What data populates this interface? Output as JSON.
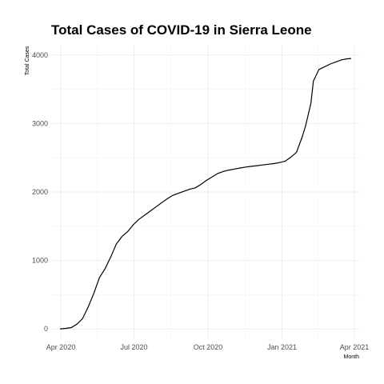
{
  "chart_data": {
    "type": "line",
    "title": "Total Cases of COVID-19 in Sierra Leone",
    "xlabel": "Month",
    "ylabel": "Total Cases",
    "x_ticks": [
      {
        "date": "2020-04-01",
        "label": "Apr 2020"
      },
      {
        "date": "2020-07-01",
        "label": "Jul 2020"
      },
      {
        "date": "2020-10-01",
        "label": "Oct 2020"
      },
      {
        "date": "2021-01-01",
        "label": "Jan 2021"
      },
      {
        "date": "2021-04-01",
        "label": "Apr 2021"
      }
    ],
    "y_ticks": [
      0,
      1000,
      2000,
      3000,
      4000
    ],
    "xlim": [
      "2020-03-20",
      "2021-04-08"
    ],
    "ylim": [
      -150,
      4150
    ],
    "grid": true,
    "line_color": "#000000",
    "series": [
      {
        "x": [
          "2020-03-31",
          "2020-04-07",
          "2020-04-14",
          "2020-04-21",
          "2020-04-28",
          "2020-05-05",
          "2020-05-12",
          "2020-05-19",
          "2020-05-26",
          "2020-06-02",
          "2020-06-09",
          "2020-06-16",
          "2020-06-23",
          "2020-06-30",
          "2020-07-07",
          "2020-07-14",
          "2020-07-21",
          "2020-07-28",
          "2020-08-04",
          "2020-08-11",
          "2020-08-18",
          "2020-08-25",
          "2020-09-01",
          "2020-09-08",
          "2020-09-15",
          "2020-09-22",
          "2020-09-29",
          "2020-10-06",
          "2020-10-13",
          "2020-10-20",
          "2020-10-27",
          "2020-11-03",
          "2020-11-10",
          "2020-11-17",
          "2020-11-24",
          "2020-12-01",
          "2020-12-08",
          "2020-12-15",
          "2020-12-22",
          "2020-12-29",
          "2021-01-05",
          "2021-01-12",
          "2021-01-19",
          "2021-01-26",
          "2021-01-30",
          "2021-02-02",
          "2021-02-06",
          "2021-02-09",
          "2021-02-16",
          "2021-02-23",
          "2021-03-02",
          "2021-03-09",
          "2021-03-16",
          "2021-03-23",
          "2021-03-28"
        ],
        "y": [
          1,
          8,
          20,
          70,
          150,
          320,
          520,
          750,
          880,
          1050,
          1240,
          1350,
          1420,
          1520,
          1600,
          1660,
          1720,
          1780,
          1840,
          1900,
          1950,
          1980,
          2010,
          2040,
          2060,
          2110,
          2170,
          2220,
          2270,
          2300,
          2320,
          2335,
          2350,
          2365,
          2375,
          2385,
          2395,
          2405,
          2415,
          2430,
          2450,
          2510,
          2580,
          2800,
          2950,
          3100,
          3300,
          3620,
          3790,
          3830,
          3870,
          3900,
          3930,
          3945,
          3950
        ]
      }
    ]
  }
}
